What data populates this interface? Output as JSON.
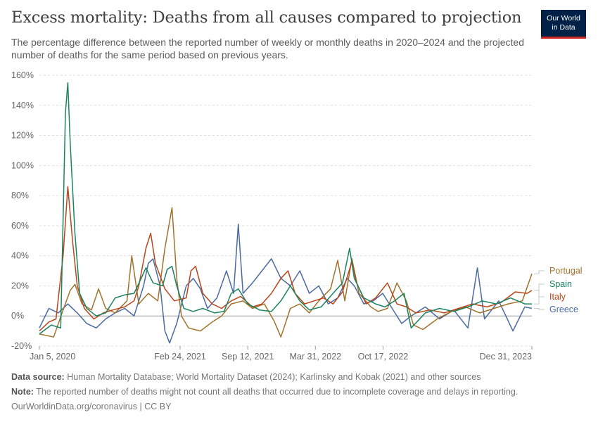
{
  "header": {
    "title": "Excess mortality: Deaths from all causes compared to projection",
    "subtitle": "The percentage difference between the reported number of weekly or monthly deaths in 2020–2024 and the projected number of deaths for the same period based on previous years.",
    "logo_line1": "Our World",
    "logo_line2": "in Data"
  },
  "footer": {
    "source_label": "Data source:",
    "source_text": "Human Mortality Database; World Mortality Dataset (2024); Karlinsky and Kobak (2021) and other sources",
    "note_label": "Note:",
    "note_text": "The reported number of deaths might not count all deaths that occurred due to incomplete coverage and delays in reporting.",
    "url": "OurWorldinData.org/coronavirus | CC BY"
  },
  "colors": {
    "Portugal": "#a2722b",
    "Spain": "#19845f",
    "Italy": "#b8451b",
    "Greece": "#4a6aa3"
  },
  "chart_data": {
    "type": "line",
    "title": "Excess mortality: Deaths from all causes compared to projection",
    "xlabel": "",
    "ylabel": "",
    "y_unit": "%",
    "ylim": [
      -20,
      160
    ],
    "y_ticks": [
      -20,
      0,
      20,
      40,
      60,
      80,
      100,
      120,
      140,
      160
    ],
    "y_tick_labels": [
      "-20%",
      "0%",
      "20%",
      "40%",
      "60%",
      "80%",
      "100%",
      "120%",
      "140%",
      "160%"
    ],
    "xlim": [
      "2020-01-05",
      "2023-12-31"
    ],
    "x_ticks": [
      "2020-01-05",
      "2021-02-24",
      "2021-09-12",
      "2022-03-31",
      "2022-10-17",
      "2023-12-31"
    ],
    "x_tick_labels": [
      "Jan 5, 2020",
      "Feb 24, 2021",
      "Sep 12, 2021",
      "Mar 31, 2022",
      "Oct 17, 2022",
      "Dec 31, 2023"
    ],
    "grid": "horizontal dashed",
    "legend": "line-end labels on right",
    "series": [
      {
        "name": "Portugal",
        "points": [
          [
            "2020-01-05",
            -12
          ],
          [
            "2020-02-16",
            -14
          ],
          [
            "2020-03-15",
            4
          ],
          [
            "2020-04-05",
            17
          ],
          [
            "2020-04-19",
            21
          ],
          [
            "2020-05-10",
            8
          ],
          [
            "2020-06-07",
            4
          ],
          [
            "2020-06-28",
            18
          ],
          [
            "2020-07-19",
            5
          ],
          [
            "2020-08-16",
            2
          ],
          [
            "2020-09-20",
            10
          ],
          [
            "2020-10-04",
            40
          ],
          [
            "2020-10-25",
            8
          ],
          [
            "2020-11-22",
            15
          ],
          [
            "2020-12-20",
            10
          ],
          [
            "2021-01-10",
            45
          ],
          [
            "2021-01-31",
            72
          ],
          [
            "2021-02-14",
            25
          ],
          [
            "2021-02-28",
            0
          ],
          [
            "2021-03-21",
            -8
          ],
          [
            "2021-04-25",
            -10
          ],
          [
            "2021-05-30",
            -4
          ],
          [
            "2021-06-27",
            0
          ],
          [
            "2021-07-25",
            8
          ],
          [
            "2021-08-29",
            10
          ],
          [
            "2021-09-26",
            5
          ],
          [
            "2021-10-31",
            8
          ],
          [
            "2021-11-28",
            -3
          ],
          [
            "2021-12-19",
            -14
          ],
          [
            "2022-01-16",
            5
          ],
          [
            "2022-02-13",
            8
          ],
          [
            "2022-03-13",
            2
          ],
          [
            "2022-04-10",
            10
          ],
          [
            "2022-05-15",
            18
          ],
          [
            "2022-06-05",
            37
          ],
          [
            "2022-06-26",
            10
          ],
          [
            "2022-07-17",
            38
          ],
          [
            "2022-08-07",
            15
          ],
          [
            "2022-09-11",
            6
          ],
          [
            "2022-10-02",
            3
          ],
          [
            "2022-10-30",
            5
          ],
          [
            "2022-11-27",
            22
          ],
          [
            "2022-12-25",
            10
          ],
          [
            "2023-01-15",
            -6
          ],
          [
            "2023-02-12",
            -9
          ],
          [
            "2023-03-26",
            -2
          ],
          [
            "2023-05-07",
            3
          ],
          [
            "2023-06-18",
            6
          ],
          [
            "2023-07-30",
            2
          ],
          [
            "2023-09-10",
            5
          ],
          [
            "2023-10-22",
            8
          ],
          [
            "2023-12-03",
            10
          ],
          [
            "2023-12-31",
            28
          ]
        ]
      },
      {
        "name": "Spain",
        "points": [
          [
            "2020-01-05",
            -12
          ],
          [
            "2020-02-09",
            -6
          ],
          [
            "2020-03-08",
            -8
          ],
          [
            "2020-03-22",
            135
          ],
          [
            "2020-03-29",
            155
          ],
          [
            "2020-04-05",
            115
          ],
          [
            "2020-04-19",
            55
          ],
          [
            "2020-05-03",
            15
          ],
          [
            "2020-05-24",
            5
          ],
          [
            "2020-06-21",
            0
          ],
          [
            "2020-07-19",
            2
          ],
          [
            "2020-08-16",
            12
          ],
          [
            "2020-09-13",
            14
          ],
          [
            "2020-10-11",
            15
          ],
          [
            "2020-11-01",
            25
          ],
          [
            "2020-11-15",
            32
          ],
          [
            "2020-12-06",
            22
          ],
          [
            "2021-01-03",
            20
          ],
          [
            "2021-01-17",
            31
          ],
          [
            "2021-01-31",
            33
          ],
          [
            "2021-02-14",
            20
          ],
          [
            "2021-03-07",
            5
          ],
          [
            "2021-04-04",
            3
          ],
          [
            "2021-05-02",
            5
          ],
          [
            "2021-06-06",
            2
          ],
          [
            "2021-07-04",
            3
          ],
          [
            "2021-07-25",
            15
          ],
          [
            "2021-08-15",
            18
          ],
          [
            "2021-09-12",
            8
          ],
          [
            "2021-10-17",
            4
          ],
          [
            "2021-11-21",
            3
          ],
          [
            "2021-12-19",
            10
          ],
          [
            "2022-01-16",
            20
          ],
          [
            "2022-02-13",
            10
          ],
          [
            "2022-03-13",
            4
          ],
          [
            "2022-04-17",
            6
          ],
          [
            "2022-05-22",
            15
          ],
          [
            "2022-06-19",
            22
          ],
          [
            "2022-07-10",
            45
          ],
          [
            "2022-07-24",
            25
          ],
          [
            "2022-08-21",
            12
          ],
          [
            "2022-09-25",
            8
          ],
          [
            "2022-10-23",
            6
          ],
          [
            "2022-11-20",
            10
          ],
          [
            "2022-12-18",
            15
          ],
          [
            "2023-01-08",
            -8
          ],
          [
            "2023-02-19",
            2
          ],
          [
            "2023-04-02",
            5
          ],
          [
            "2023-05-14",
            3
          ],
          [
            "2023-06-25",
            6
          ],
          [
            "2023-08-06",
            10
          ],
          [
            "2023-09-17",
            8
          ],
          [
            "2023-10-29",
            12
          ],
          [
            "2023-12-10",
            8
          ],
          [
            "2023-12-31",
            8
          ]
        ]
      },
      {
        "name": "Italy",
        "points": [
          [
            "2020-01-05",
            -10
          ],
          [
            "2020-02-02",
            -4
          ],
          [
            "2020-02-23",
            -2
          ],
          [
            "2020-03-15",
            40
          ],
          [
            "2020-03-29",
            86
          ],
          [
            "2020-04-12",
            50
          ],
          [
            "2020-04-26",
            20
          ],
          [
            "2020-05-17",
            5
          ],
          [
            "2020-06-14",
            -2
          ],
          [
            "2020-07-12",
            2
          ],
          [
            "2020-08-09",
            4
          ],
          [
            "2020-09-13",
            6
          ],
          [
            "2020-10-11",
            10
          ],
          [
            "2020-10-25",
            20
          ],
          [
            "2020-11-15",
            45
          ],
          [
            "2020-11-29",
            55
          ],
          [
            "2020-12-13",
            35
          ],
          [
            "2021-01-10",
            18
          ],
          [
            "2021-02-07",
            10
          ],
          [
            "2021-03-14",
            12
          ],
          [
            "2021-03-28",
            30
          ],
          [
            "2021-04-11",
            33
          ],
          [
            "2021-05-02",
            15
          ],
          [
            "2021-05-30",
            8
          ],
          [
            "2021-06-27",
            5
          ],
          [
            "2021-07-25",
            10
          ],
          [
            "2021-08-22",
            13
          ],
          [
            "2021-09-26",
            6
          ],
          [
            "2021-10-24",
            8
          ],
          [
            "2021-11-21",
            15
          ],
          [
            "2021-12-19",
            25
          ],
          [
            "2022-01-09",
            30
          ],
          [
            "2022-01-30",
            15
          ],
          [
            "2022-02-27",
            8
          ],
          [
            "2022-03-27",
            10
          ],
          [
            "2022-04-24",
            12
          ],
          [
            "2022-05-22",
            8
          ],
          [
            "2022-06-19",
            16
          ],
          [
            "2022-07-17",
            36
          ],
          [
            "2022-07-31",
            22
          ],
          [
            "2022-08-28",
            8
          ],
          [
            "2022-09-25",
            12
          ],
          [
            "2022-10-30",
            22
          ],
          [
            "2022-11-27",
            8
          ],
          [
            "2022-12-25",
            6
          ],
          [
            "2023-01-22",
            2
          ],
          [
            "2023-03-05",
            4
          ],
          [
            "2023-04-16",
            2
          ],
          [
            "2023-05-28",
            5
          ],
          [
            "2023-07-09",
            8
          ],
          [
            "2023-08-20",
            6
          ],
          [
            "2023-10-01",
            9
          ],
          [
            "2023-11-12",
            16
          ],
          [
            "2023-12-17",
            15
          ],
          [
            "2023-12-31",
            17
          ]
        ]
      },
      {
        "name": "Greece",
        "points": [
          [
            "2020-01-05",
            -8
          ],
          [
            "2020-02-02",
            5
          ],
          [
            "2020-03-01",
            2
          ],
          [
            "2020-03-29",
            8
          ],
          [
            "2020-04-26",
            2
          ],
          [
            "2020-05-24",
            -5
          ],
          [
            "2020-06-21",
            -8
          ],
          [
            "2020-07-19",
            -2
          ],
          [
            "2020-08-16",
            2
          ],
          [
            "2020-09-13",
            5
          ],
          [
            "2020-10-11",
            0
          ],
          [
            "2020-11-08",
            20
          ],
          [
            "2020-11-22",
            35
          ],
          [
            "2020-12-06",
            38
          ],
          [
            "2020-12-27",
            20
          ],
          [
            "2021-01-10",
            -10
          ],
          [
            "2021-01-24",
            -18
          ],
          [
            "2021-02-14",
            -5
          ],
          [
            "2021-03-14",
            20
          ],
          [
            "2021-04-04",
            25
          ],
          [
            "2021-04-25",
            18
          ],
          [
            "2021-05-16",
            5
          ],
          [
            "2021-06-13",
            12
          ],
          [
            "2021-07-11",
            30
          ],
          [
            "2021-08-01",
            15
          ],
          [
            "2021-08-15",
            61
          ],
          [
            "2021-08-29",
            15
          ],
          [
            "2021-09-26",
            22
          ],
          [
            "2021-10-24",
            30
          ],
          [
            "2021-11-21",
            38
          ],
          [
            "2021-12-19",
            25
          ],
          [
            "2022-01-16",
            20
          ],
          [
            "2022-02-13",
            30
          ],
          [
            "2022-03-13",
            15
          ],
          [
            "2022-04-10",
            20
          ],
          [
            "2022-05-08",
            8
          ],
          [
            "2022-06-05",
            12
          ],
          [
            "2022-07-03",
            25
          ],
          [
            "2022-07-24",
            20
          ],
          [
            "2022-08-21",
            8
          ],
          [
            "2022-09-18",
            10
          ],
          [
            "2022-10-16",
            15
          ],
          [
            "2022-11-13",
            5
          ],
          [
            "2022-12-11",
            -5
          ],
          [
            "2023-01-08",
            0
          ],
          [
            "2023-02-19",
            6
          ],
          [
            "2023-04-02",
            -2
          ],
          [
            "2023-05-14",
            4
          ],
          [
            "2023-06-25",
            -8
          ],
          [
            "2023-07-23",
            32
          ],
          [
            "2023-08-13",
            -2
          ],
          [
            "2023-09-24",
            10
          ],
          [
            "2023-11-05",
            -10
          ],
          [
            "2023-12-10",
            6
          ],
          [
            "2023-12-31",
            5
          ]
        ]
      }
    ]
  }
}
